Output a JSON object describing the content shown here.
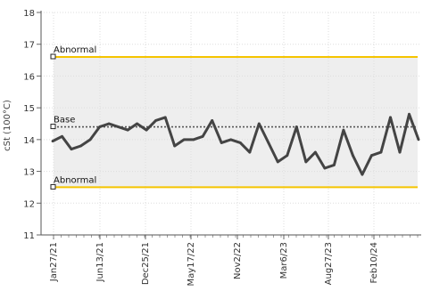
{
  "chart_data": {
    "type": "line",
    "ylabel": "cSt (100°C)",
    "ylim": [
      11,
      18
    ],
    "yticks": [
      11,
      12,
      13,
      14,
      15,
      16,
      17,
      18
    ],
    "x_tick_labels": [
      "Jan27/21",
      "Jun13/21",
      "Dec25/21",
      "May17/22",
      "Nov2/22",
      "Mar6/23",
      "Aug27/23",
      "Feb10/24"
    ],
    "grid": true,
    "colors": {
      "series": "#444444",
      "abnormal": "#f5c400",
      "base": "#555555",
      "band": "#eeeeee"
    },
    "reference_lines": [
      {
        "label": "Abnormal",
        "value": 16.6,
        "style": "abnormal"
      },
      {
        "label": "Base",
        "value": 14.4,
        "style": "base"
      },
      {
        "label": "Abnormal",
        "value": 12.5,
        "style": "abnormal"
      }
    ],
    "series": [
      {
        "values": [
          13.95,
          14.1,
          13.7,
          13.8,
          14.0,
          14.4,
          14.5,
          14.4,
          14.3,
          14.5,
          14.3,
          14.6,
          14.7,
          13.8,
          14.0,
          14.0,
          14.1,
          14.6,
          13.9,
          14.0,
          13.9,
          13.6,
          14.5,
          13.9,
          13.3,
          13.5,
          14.4,
          13.3,
          13.6,
          13.1,
          13.2,
          14.3,
          13.5,
          12.9,
          13.5,
          13.6,
          14.7,
          13.6,
          14.8,
          14.0
        ]
      }
    ]
  }
}
